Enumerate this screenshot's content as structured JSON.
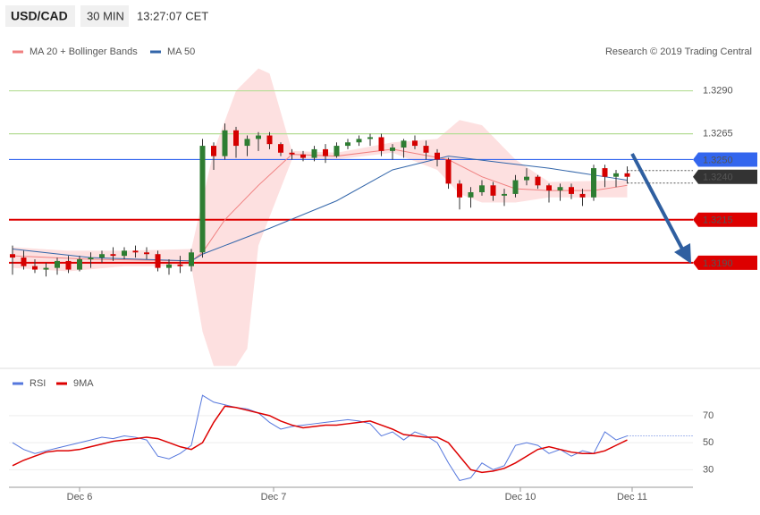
{
  "chart_data": {
    "type": "candlestick",
    "header": {
      "symbol": "USD/CAD",
      "timeframe": "30 MIN",
      "time": "13:27:07 CET"
    },
    "credit": "Research © 2019 Trading Central",
    "x_labels": [
      "Dec 6",
      "Dec 7",
      "Dec 10",
      "Dec 11"
    ],
    "ylim": [
      1.3127,
      1.3309
    ],
    "open": [
      1.3195,
      1.3193,
      1.3188,
      1.3186,
      1.3187,
      1.3191,
      1.3186,
      1.3192,
      1.3193,
      1.3195,
      1.3194,
      1.3197,
      1.3196,
      1.3195,
      1.3187,
      1.3189,
      1.3188,
      1.3196,
      1.3258,
      1.3252,
      1.3267,
      1.3258,
      1.3262,
      1.3264,
      1.3259,
      1.3254,
      1.3253,
      1.3251,
      1.3256,
      1.3252,
      1.3258,
      1.326,
      1.3262,
      1.3263,
      1.3255,
      1.3257,
      1.3261,
      1.3258,
      1.3254,
      1.325,
      1.3236,
      1.3228,
      1.3231,
      1.3235,
      1.3229,
      1.323,
      1.3238,
      1.324,
      1.3235,
      1.3232,
      1.3234,
      1.323,
      1.3228,
      1.3245,
      1.324,
      1.3242
    ],
    "high": [
      1.32,
      1.3197,
      1.3192,
      1.319,
      1.3193,
      1.3194,
      1.3194,
      1.3196,
      1.3197,
      1.3199,
      1.3199,
      1.32,
      1.3199,
      1.3197,
      1.3192,
      1.3194,
      1.3198,
      1.3262,
      1.326,
      1.3271,
      1.3269,
      1.3264,
      1.3266,
      1.3266,
      1.326,
      1.3256,
      1.3255,
      1.3258,
      1.3259,
      1.326,
      1.3262,
      1.3264,
      1.3265,
      1.3265,
      1.3259,
      1.3262,
      1.3264,
      1.3261,
      1.3256,
      1.3251,
      1.3238,
      1.3234,
      1.3238,
      1.3237,
      1.3233,
      1.3241,
      1.3245,
      1.3241,
      1.3236,
      1.3236,
      1.3236,
      1.3233,
      1.3247,
      1.3247,
      1.3244,
      1.3246
    ],
    "low": [
      1.3183,
      1.3186,
      1.3184,
      1.3182,
      1.3183,
      1.3184,
      1.3185,
      1.3187,
      1.319,
      1.3191,
      1.3192,
      1.3193,
      1.3192,
      1.3185,
      1.3183,
      1.3184,
      1.3185,
      1.3193,
      1.3244,
      1.325,
      1.3251,
      1.3252,
      1.3255,
      1.3256,
      1.3252,
      1.325,
      1.3249,
      1.3249,
      1.3248,
      1.3251,
      1.3256,
      1.3258,
      1.3258,
      1.3252,
      1.325,
      1.3251,
      1.3256,
      1.325,
      1.3246,
      1.3233,
      1.3221,
      1.3222,
      1.3229,
      1.3226,
      1.3223,
      1.3228,
      1.3235,
      1.3233,
      1.3225,
      1.3226,
      1.3227,
      1.3223,
      1.3226,
      1.3234,
      1.3234,
      1.3236
    ],
    "close": [
      1.3193,
      1.3188,
      1.3186,
      1.3187,
      1.3191,
      1.3186,
      1.3192,
      1.3193,
      1.3195,
      1.3194,
      1.3197,
      1.3196,
      1.3195,
      1.3187,
      1.3189,
      1.3188,
      1.3196,
      1.3258,
      1.3252,
      1.3267,
      1.3258,
      1.3262,
      1.3264,
      1.3259,
      1.3254,
      1.3253,
      1.3251,
      1.3256,
      1.3252,
      1.3258,
      1.326,
      1.3262,
      1.3263,
      1.3255,
      1.3257,
      1.3261,
      1.3258,
      1.3254,
      1.325,
      1.3236,
      1.3228,
      1.3231,
      1.3235,
      1.3229,
      1.323,
      1.3238,
      1.324,
      1.3235,
      1.3232,
      1.3234,
      1.323,
      1.3228,
      1.3245,
      1.324,
      1.3242,
      1.324
    ],
    "up_color": "#2e7d32",
    "down_color": "#d50000",
    "overlays": [
      {
        "name": "MA 20 + Bollinger Bands",
        "color": "#f08080",
        "x": [
          0,
          7,
          16,
          17,
          19,
          22,
          25,
          29,
          34,
          39,
          42,
          45,
          48,
          52,
          55
        ],
        "values": [
          1.3194,
          1.3192,
          1.3191,
          1.3196,
          1.3215,
          1.3235,
          1.3253,
          1.3252,
          1.3256,
          1.325,
          1.324,
          1.3233,
          1.3232,
          1.3232,
          1.3235
        ],
        "band_color": "#fde0e0",
        "upper": {
          "x": [
            0,
            5,
            10,
            16,
            18,
            20,
            22,
            23,
            25,
            29,
            34,
            38,
            40,
            42,
            45,
            48,
            55
          ],
          "values": [
            1.3199,
            1.3197,
            1.3197,
            1.3198,
            1.3255,
            1.329,
            1.3303,
            1.33,
            1.3255,
            1.3254,
            1.326,
            1.3262,
            1.3273,
            1.327,
            1.325,
            1.3237,
            1.3238
          ]
        },
        "lower": {
          "x": [
            0,
            5,
            10,
            16,
            17,
            18,
            20,
            21,
            22,
            25,
            29,
            34,
            38,
            40,
            42,
            45,
            48,
            55
          ],
          "values": [
            1.3187,
            1.3185,
            1.3188,
            1.3188,
            1.315,
            1.313,
            1.313,
            1.314,
            1.32,
            1.325,
            1.325,
            1.3254,
            1.3244,
            1.323,
            1.3225,
            1.3225,
            1.3228,
            1.3228
          ]
        }
      },
      {
        "name": "MA 50",
        "color": "#3366aa",
        "x": [
          0,
          7,
          16,
          17,
          23,
          29,
          34,
          39,
          44,
          48,
          53,
          55
        ],
        "values": [
          1.3198,
          1.3193,
          1.3191,
          1.3195,
          1.321,
          1.3226,
          1.3244,
          1.3252,
          1.3248,
          1.3245,
          1.324,
          1.3238
        ]
      }
    ],
    "levels": [
      {
        "value": 1.329,
        "label": "1.3290",
        "color": "#b5dd95",
        "text_color": "#3f9a1a",
        "box": false
      },
      {
        "value": 1.3265,
        "label": "1.3265",
        "color": "#b5dd95",
        "text_color": "#3f9a1a",
        "box": false
      },
      {
        "value": 1.325,
        "label": "1.3250",
        "color": "#3366ee",
        "text_color": "#ffffff",
        "box": true
      },
      {
        "value": 1.3215,
        "label": "1.3215",
        "color": "#dd0000",
        "text_color": "#ffffff",
        "box": true
      },
      {
        "value": 1.319,
        "label": "1.3190",
        "color": "#dd0000",
        "text_color": "#ffffff",
        "box": true
      }
    ],
    "last_price": {
      "value": 1.324,
      "label": "1.3240",
      "color": "#333333"
    },
    "rsi": {
      "ylim": [
        17,
        101
      ],
      "yticks": [
        30,
        50,
        70
      ],
      "series": [
        {
          "name": "RSI",
          "color": "#5577dd",
          "values": [
            50,
            45,
            42,
            44,
            46,
            48,
            50,
            52,
            54,
            53,
            55,
            54,
            52,
            40,
            38,
            42,
            48,
            85,
            80,
            78,
            76,
            75,
            72,
            65,
            60,
            62,
            63,
            64,
            65,
            66,
            67,
            66,
            64,
            55,
            58,
            52,
            58,
            55,
            50,
            35,
            22,
            24,
            35,
            30,
            33,
            48,
            50,
            48,
            42,
            45,
            40,
            44,
            42,
            58,
            52,
            55
          ]
        },
        {
          "name": "9MA",
          "color": "#dd0000",
          "values": [
            33,
            37,
            40,
            43,
            44,
            44,
            45,
            47,
            49,
            51,
            52,
            53,
            54,
            53,
            50,
            47,
            45,
            50,
            65,
            77,
            76,
            74,
            72,
            70,
            66,
            63,
            61,
            62,
            63,
            63,
            64,
            65,
            66,
            63,
            60,
            56,
            55,
            54,
            54,
            50,
            40,
            30,
            28,
            29,
            31,
            35,
            40,
            45,
            47,
            45,
            43,
            42,
            42,
            44,
            48,
            52
          ]
        }
      ]
    }
  }
}
